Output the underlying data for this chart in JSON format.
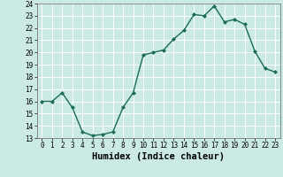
{
  "x": [
    0,
    1,
    2,
    3,
    4,
    5,
    6,
    7,
    8,
    9,
    10,
    11,
    12,
    13,
    14,
    15,
    16,
    17,
    18,
    19,
    20,
    21,
    22,
    23
  ],
  "y": [
    16.0,
    16.0,
    16.7,
    15.5,
    13.5,
    13.2,
    13.3,
    13.5,
    15.5,
    16.7,
    19.8,
    20.0,
    20.2,
    21.1,
    21.8,
    23.1,
    23.0,
    23.8,
    22.5,
    22.7,
    22.3,
    20.1,
    18.7,
    18.4
  ],
  "line_color": "#1a6b5a",
  "marker": "D",
  "marker_size": 2.0,
  "bg_color": "#cceae4",
  "grid_color": "#ffffff",
  "xlabel": "Humidex (Indice chaleur)",
  "xlim": [
    -0.5,
    23.5
  ],
  "ylim": [
    13,
    24
  ],
  "yticks": [
    13,
    14,
    15,
    16,
    17,
    18,
    19,
    20,
    21,
    22,
    23,
    24
  ],
  "xticks": [
    0,
    1,
    2,
    3,
    4,
    5,
    6,
    7,
    8,
    9,
    10,
    11,
    12,
    13,
    14,
    15,
    16,
    17,
    18,
    19,
    20,
    21,
    22,
    23
  ],
  "tick_label_size": 5.5,
  "xlabel_fontsize": 7.5,
  "xlabel_fontweight": "bold",
  "linewidth": 1.0
}
